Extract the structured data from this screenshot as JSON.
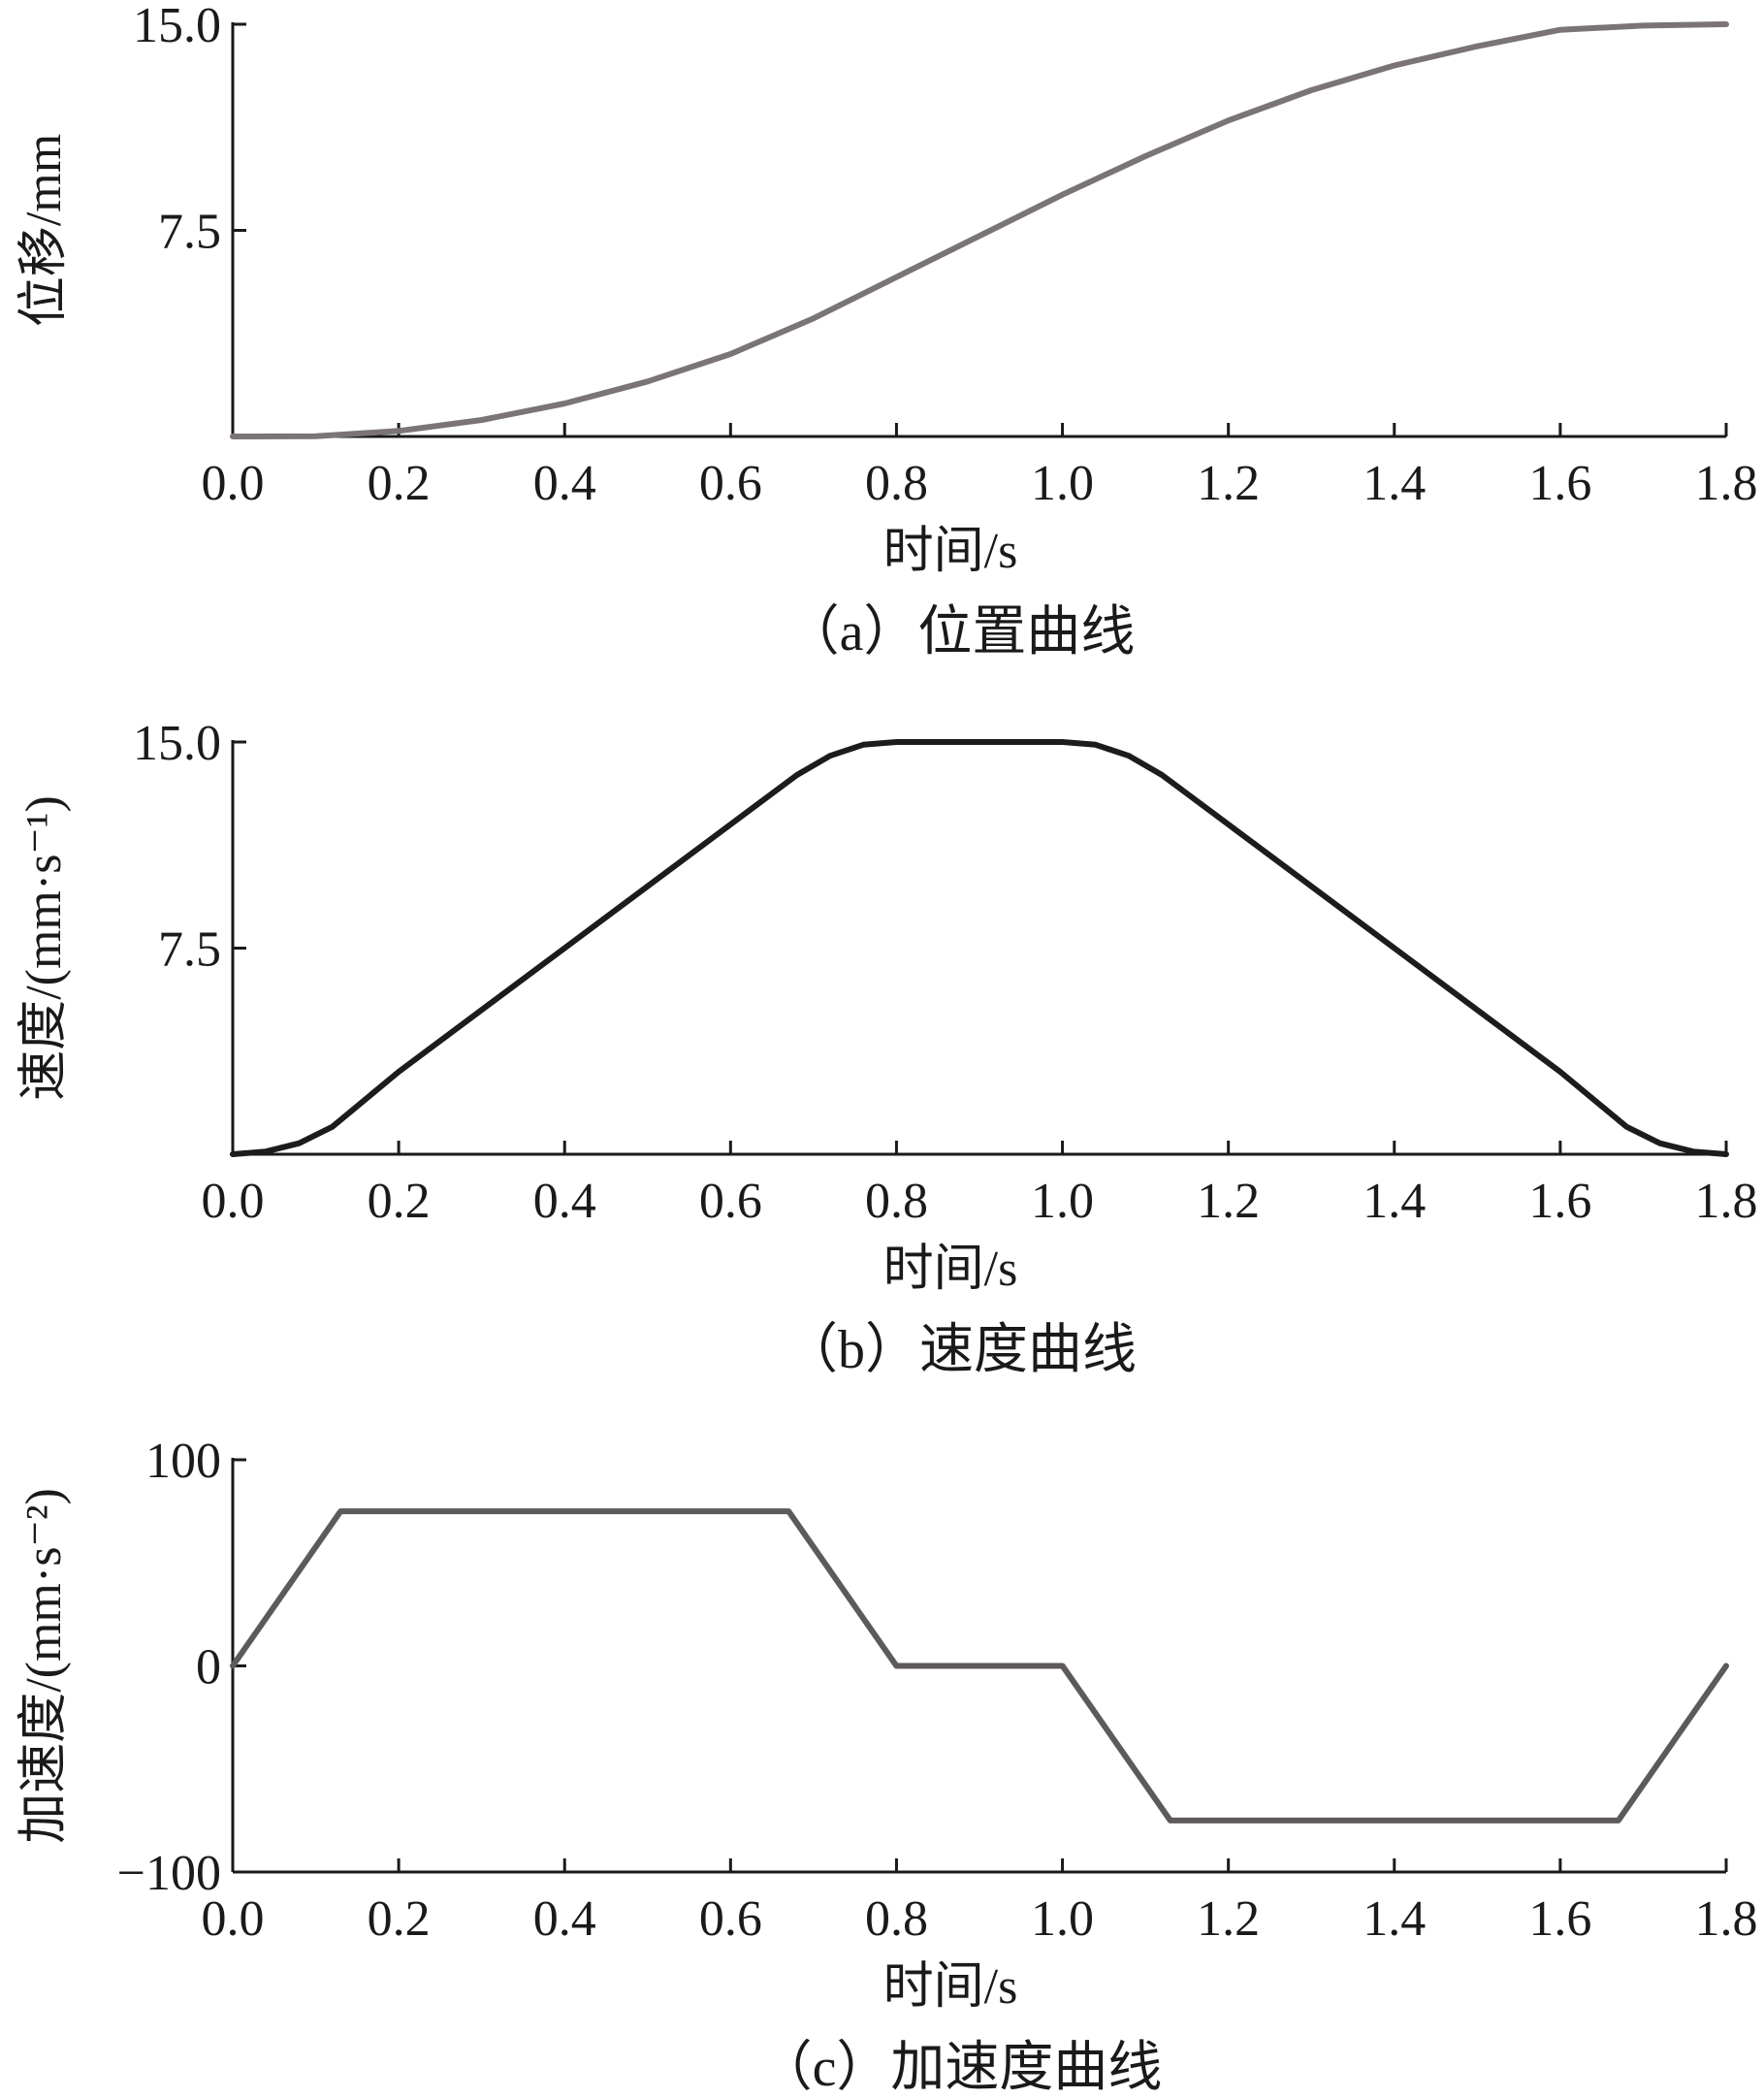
{
  "chart_data": [
    {
      "type": "line",
      "caption": "（a）位置曲线",
      "xlabel": "时间/s",
      "ylabel": "位移/mm",
      "xlim": [
        0,
        1.8
      ],
      "ylim": [
        0,
        15
      ],
      "xticks": [
        "0.0",
        "0.2",
        "0.4",
        "0.6",
        "0.8",
        "1.0",
        "1.2",
        "1.4",
        "1.6",
        "1.8"
      ],
      "yticks": [
        {
          "value": 7.5,
          "label": "7.5"
        },
        {
          "value": 15,
          "label": "15.0"
        }
      ],
      "series": [
        {
          "color": "#7a7476",
          "x": [
            0,
            0.1,
            0.2,
            0.3,
            0.4,
            0.5,
            0.6,
            0.7,
            0.8,
            0.9,
            1.0,
            1.1,
            1.2,
            1.3,
            1.4,
            1.5,
            1.6,
            1.7,
            1.8
          ],
          "y": [
            0,
            0.01,
            0.2,
            0.6,
            1.2,
            2.0,
            3.0,
            4.3,
            5.8,
            7.3,
            8.8,
            10.2,
            11.5,
            12.6,
            13.5,
            14.2,
            14.8,
            14.95,
            15.0
          ]
        }
      ]
    },
    {
      "type": "line",
      "caption": "（b）速度曲线",
      "xlabel": "时间/s",
      "ylabel": "速度/(mm·s⁻¹)",
      "xlim": [
        0,
        1.8
      ],
      "ylim": [
        0,
        15
      ],
      "xticks": [
        "0.0",
        "0.2",
        "0.4",
        "0.6",
        "0.8",
        "1.0",
        "1.2",
        "1.4",
        "1.6",
        "1.8"
      ],
      "yticks": [
        {
          "value": 7.5,
          "label": "7.5"
        },
        {
          "value": 15,
          "label": "15.0"
        }
      ],
      "series": [
        {
          "color": "#1c1c1c",
          "x": [
            0,
            0.04,
            0.08,
            0.12,
            0.2,
            0.4,
            0.6,
            0.68,
            0.72,
            0.76,
            0.8,
            0.9,
            1.0,
            1.04,
            1.08,
            1.12,
            1.2,
            1.4,
            1.6,
            1.68,
            1.72,
            1.76,
            1.8
          ],
          "y": [
            0,
            0.1,
            0.4,
            1.0,
            3.0,
            7.5,
            12.0,
            13.8,
            14.5,
            14.9,
            15.0,
            15.0,
            15.0,
            14.9,
            14.5,
            13.8,
            12.0,
            7.5,
            3.0,
            1.0,
            0.4,
            0.1,
            0
          ]
        }
      ]
    },
    {
      "type": "line",
      "caption": "（c）加速度曲线",
      "xlabel": "时间/s",
      "ylabel": "加速度/(mm·s⁻²)",
      "xlim": [
        0,
        1.8
      ],
      "ylim": [
        -100,
        100
      ],
      "xticks": [
        "0.0",
        "0.2",
        "0.4",
        "0.6",
        "0.8",
        "1.0",
        "1.2",
        "1.4",
        "1.6",
        "1.8"
      ],
      "yticks": [
        {
          "value": -100,
          "label": "−100"
        },
        {
          "value": 0,
          "label": "0"
        },
        {
          "value": 100,
          "label": "100"
        }
      ],
      "series": [
        {
          "color": "#5e5a5a",
          "x": [
            0,
            0.13,
            0.67,
            0.8,
            1.0,
            1.13,
            1.67,
            1.8
          ],
          "y": [
            0,
            75,
            75,
            0,
            0,
            -75,
            -75,
            0
          ]
        }
      ]
    }
  ]
}
